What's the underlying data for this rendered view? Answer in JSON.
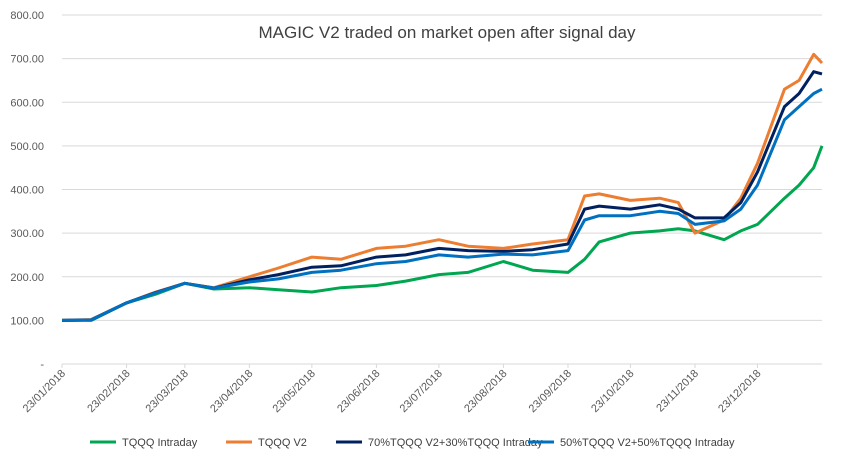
{
  "chart_data": {
    "type": "line",
    "title": "MAGIC V2 traded on market open after signal day",
    "xlabel": "",
    "ylabel": "",
    "ylim": [
      0,
      800
    ],
    "y_ticks": [
      "-",
      "100.00",
      "200.00",
      "300.00",
      "400.00",
      "500.00",
      "600.00",
      "700.00",
      "800.00"
    ],
    "x_ticks": [
      "23/01/2018",
      "23/02/2018",
      "23/03/2018",
      "23/04/2018",
      "23/05/2018",
      "23/06/2018",
      "23/07/2018",
      "23/08/2018",
      "23/09/2018",
      "23/10/2018",
      "23/11/2018",
      "23/12/2018"
    ],
    "grid": "horizontal",
    "legend_position": "bottom",
    "x": [
      "2018-01-23",
      "2018-02-06",
      "2018-02-23",
      "2018-03-09",
      "2018-03-23",
      "2018-04-06",
      "2018-04-23",
      "2018-05-07",
      "2018-05-23",
      "2018-06-06",
      "2018-06-23",
      "2018-07-07",
      "2018-07-23",
      "2018-08-06",
      "2018-08-23",
      "2018-09-06",
      "2018-09-23",
      "2018-10-01",
      "2018-10-08",
      "2018-10-23",
      "2018-11-06",
      "2018-11-15",
      "2018-11-23",
      "2018-12-07",
      "2018-12-15",
      "2018-12-23",
      "2019-01-05",
      "2019-01-12",
      "2019-01-19",
      "2019-01-23"
    ],
    "series": [
      {
        "name": "TQQQ Intraday",
        "color": "#00a650",
        "values": [
          100,
          100,
          140,
          160,
          185,
          172,
          175,
          170,
          165,
          175,
          180,
          190,
          205,
          210,
          235,
          215,
          210,
          240,
          280,
          300,
          305,
          310,
          305,
          285,
          305,
          320,
          380,
          410,
          450,
          500
        ]
      },
      {
        "name": "TQQQ V2",
        "color": "#ed7d31",
        "values": [
          100,
          102,
          140,
          165,
          185,
          175,
          200,
          220,
          245,
          240,
          265,
          270,
          285,
          270,
          265,
          275,
          285,
          385,
          390,
          375,
          380,
          370,
          300,
          330,
          380,
          460,
          630,
          650,
          710,
          690
        ]
      },
      {
        "name": "70%TQQQ V2+30%TQQQ Intraday",
        "color": "#002060",
        "values": [
          100,
          101,
          140,
          164,
          185,
          174,
          193,
          205,
          222,
          225,
          245,
          250,
          265,
          260,
          258,
          262,
          275,
          355,
          362,
          355,
          365,
          355,
          335,
          335,
          370,
          440,
          590,
          620,
          670,
          665
        ]
      },
      {
        "name": "50%TQQQ V2+50%TQQQ Intraday",
        "color": "#0070c0",
        "values": [
          100,
          101,
          140,
          163,
          185,
          174,
          188,
          195,
          210,
          215,
          230,
          235,
          250,
          245,
          252,
          250,
          260,
          330,
          340,
          340,
          350,
          345,
          320,
          328,
          355,
          410,
          560,
          590,
          620,
          630
        ]
      }
    ]
  }
}
